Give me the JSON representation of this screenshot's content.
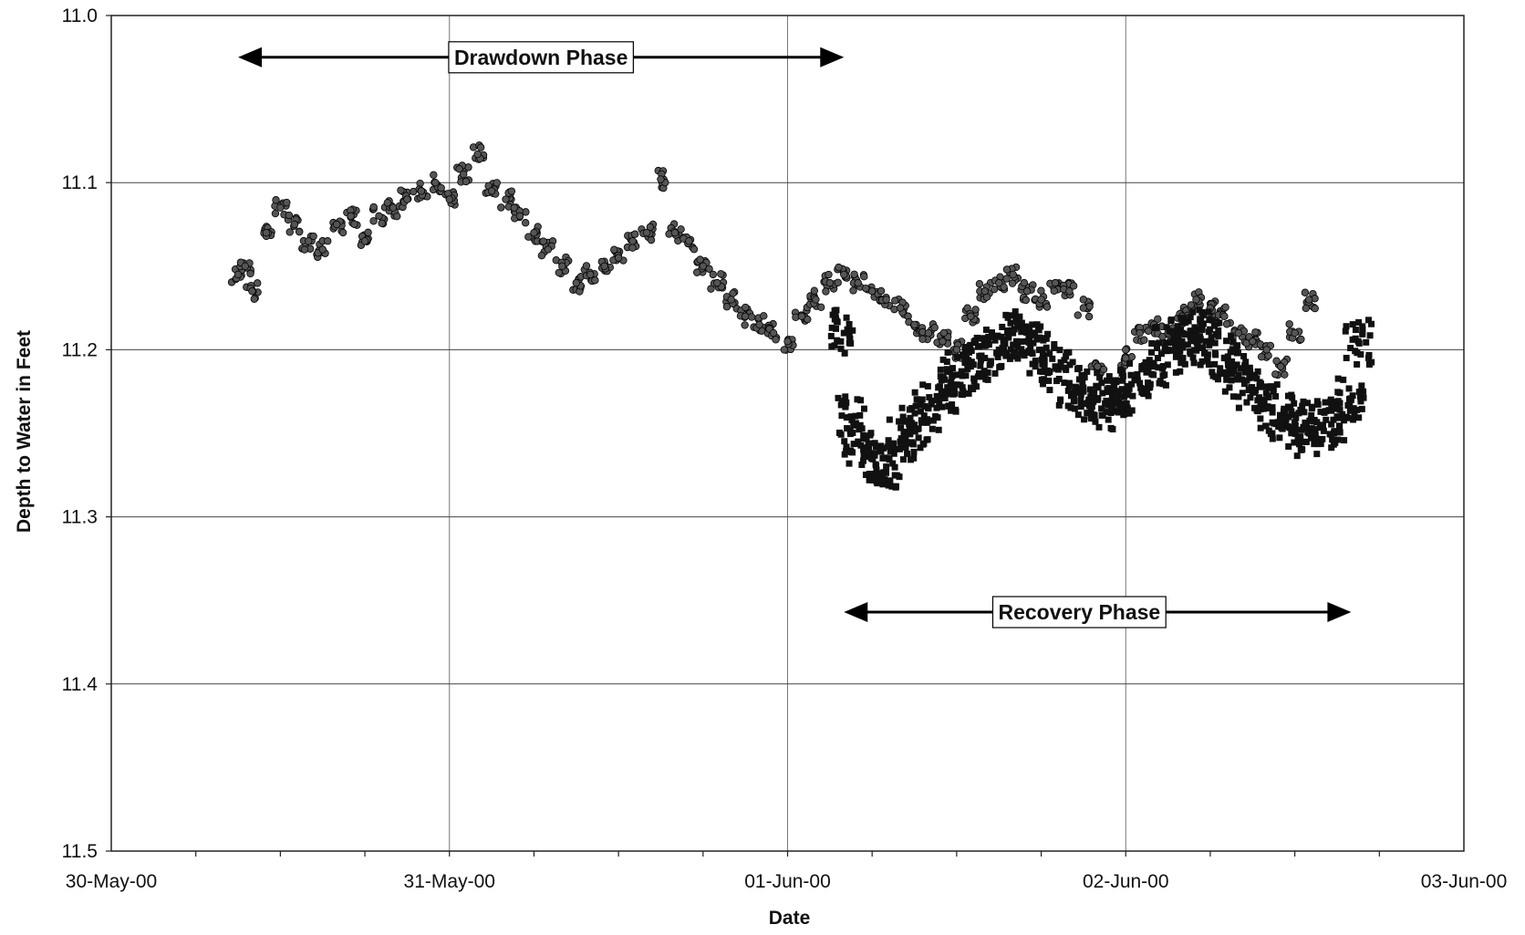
{
  "chart_data": {
    "type": "scatter",
    "title": "",
    "xlabel": "Date",
    "ylabel": "Depth to Water in Feet",
    "xlim": [
      "2000-05-30",
      "2000-06-03"
    ],
    "ylim": [
      11.0,
      11.5
    ],
    "y_inverted": true,
    "grid": true,
    "x_ticks": [
      "30-May-00",
      "31-May-00",
      "01-Jun-00",
      "02-Jun-00",
      "03-Jun-00"
    ],
    "y_ticks": [
      "11.0",
      "11.1",
      "11.2",
      "11.3",
      "11.4",
      "11.5"
    ],
    "annotations": [
      {
        "text": "Drawdown Phase",
        "x_start": "2000-05-30 09:00",
        "x_end": "2000-06-01 04:00",
        "y": 11.025
      },
      {
        "text": "Recovery Phase",
        "x_start": "2000-06-01 04:00",
        "x_end": "2000-06-02 16:00",
        "y": 11.357
      }
    ],
    "series": [
      {
        "marker": "circle",
        "color": "#555555",
        "points": [
          [
            "2000-05-30 09:00",
            11.155
          ],
          [
            "2000-05-30 09:30",
            11.15
          ],
          [
            "2000-05-30 10:00",
            11.165
          ],
          [
            "2000-05-30 11:00",
            11.13
          ],
          [
            "2000-05-30 12:00",
            11.115
          ],
          [
            "2000-05-30 13:00",
            11.125
          ],
          [
            "2000-05-30 14:00",
            11.135
          ],
          [
            "2000-05-30 15:00",
            11.14
          ],
          [
            "2000-05-30 16:00",
            11.125
          ],
          [
            "2000-05-30 17:00",
            11.12
          ],
          [
            "2000-05-30 18:00",
            11.135
          ],
          [
            "2000-05-30 19:00",
            11.12
          ],
          [
            "2000-05-30 20:00",
            11.115
          ],
          [
            "2000-05-30 21:00",
            11.11
          ],
          [
            "2000-05-30 22:00",
            11.105
          ],
          [
            "2000-05-30 23:00",
            11.1
          ],
          [
            "2000-05-31 00:00",
            11.11
          ],
          [
            "2000-05-31 01:00",
            11.095
          ],
          [
            "2000-05-31 02:00",
            11.083
          ],
          [
            "2000-05-31 03:00",
            11.105
          ],
          [
            "2000-05-31 04:00",
            11.11
          ],
          [
            "2000-05-31 05:00",
            11.12
          ],
          [
            "2000-05-31 06:00",
            11.13
          ],
          [
            "2000-05-31 07:00",
            11.14
          ],
          [
            "2000-05-31 08:00",
            11.15
          ],
          [
            "2000-05-31 09:00",
            11.16
          ],
          [
            "2000-05-31 10:00",
            11.155
          ],
          [
            "2000-05-31 11:00",
            11.15
          ],
          [
            "2000-05-31 12:00",
            11.145
          ],
          [
            "2000-05-31 13:00",
            11.135
          ],
          [
            "2000-05-31 14:00",
            11.13
          ],
          [
            "2000-05-31 15:00",
            11.098
          ],
          [
            "2000-05-31 16:00",
            11.13
          ],
          [
            "2000-05-31 17:00",
            11.135
          ],
          [
            "2000-05-31 18:00",
            11.15
          ],
          [
            "2000-05-31 19:00",
            11.16
          ],
          [
            "2000-05-31 20:00",
            11.17
          ],
          [
            "2000-05-31 21:00",
            11.18
          ],
          [
            "2000-05-31 22:00",
            11.185
          ],
          [
            "2000-05-31 23:00",
            11.19
          ],
          [
            "2000-06-01 00:00",
            11.195
          ],
          [
            "2000-06-01 01:00",
            11.18
          ],
          [
            "2000-06-01 02:00",
            11.17
          ],
          [
            "2000-06-01 03:00",
            11.16
          ],
          [
            "2000-06-01 04:00",
            11.155
          ],
          [
            "2000-06-01 05:00",
            11.16
          ],
          [
            "2000-06-01 06:00",
            11.165
          ],
          [
            "2000-06-01 07:00",
            11.17
          ],
          [
            "2000-06-01 08:00",
            11.175
          ],
          [
            "2000-06-01 09:00",
            11.185
          ],
          [
            "2000-06-01 10:00",
            11.19
          ],
          [
            "2000-06-01 11:00",
            11.195
          ],
          [
            "2000-06-01 12:00",
            11.2
          ],
          [
            "2000-06-01 13:00",
            11.18
          ],
          [
            "2000-06-01 14:00",
            11.165
          ],
          [
            "2000-06-01 15:00",
            11.16
          ],
          [
            "2000-06-01 16:00",
            11.155
          ],
          [
            "2000-06-01 17:00",
            11.165
          ],
          [
            "2000-06-01 18:00",
            11.17
          ],
          [
            "2000-06-01 19:00",
            11.16
          ],
          [
            "2000-06-01 20:00",
            11.165
          ],
          [
            "2000-06-01 21:00",
            11.175
          ],
          [
            "2000-06-01 22:00",
            11.21
          ],
          [
            "2000-06-01 23:00",
            11.233
          ],
          [
            "2000-06-02 00:00",
            11.205
          ],
          [
            "2000-06-02 01:00",
            11.19
          ],
          [
            "2000-06-02 02:00",
            11.185
          ],
          [
            "2000-06-02 03:00",
            11.19
          ],
          [
            "2000-06-02 04:00",
            11.18
          ],
          [
            "2000-06-02 05:00",
            11.17
          ],
          [
            "2000-06-02 06:00",
            11.175
          ],
          [
            "2000-06-02 07:00",
            11.18
          ],
          [
            "2000-06-02 08:00",
            11.19
          ],
          [
            "2000-06-02 09:00",
            11.195
          ],
          [
            "2000-06-02 10:00",
            11.2
          ],
          [
            "2000-06-02 11:00",
            11.21
          ],
          [
            "2000-06-02 12:00",
            11.19
          ],
          [
            "2000-06-02 13:00",
            11.17
          ]
        ]
      },
      {
        "marker": "square",
        "color": "#111111",
        "points": [
          [
            "2000-06-01 04:00",
            11.19
          ],
          [
            "2000-06-01 04:30",
            11.24
          ],
          [
            "2000-06-01 05:00",
            11.255
          ],
          [
            "2000-06-01 06:00",
            11.265
          ],
          [
            "2000-06-01 07:00",
            11.27
          ],
          [
            "2000-06-01 08:00",
            11.255
          ],
          [
            "2000-06-01 09:00",
            11.245
          ],
          [
            "2000-06-01 10:00",
            11.235
          ],
          [
            "2000-06-01 11:00",
            11.225
          ],
          [
            "2000-06-01 12:00",
            11.215
          ],
          [
            "2000-06-01 13:00",
            11.21
          ],
          [
            "2000-06-01 14:00",
            11.205
          ],
          [
            "2000-06-01 15:00",
            11.2
          ],
          [
            "2000-06-01 16:00",
            11.19
          ],
          [
            "2000-06-01 17:00",
            11.195
          ],
          [
            "2000-06-01 18:00",
            11.2
          ],
          [
            "2000-06-01 19:00",
            11.21
          ],
          [
            "2000-06-01 20:00",
            11.22
          ],
          [
            "2000-06-01 21:00",
            11.225
          ],
          [
            "2000-06-01 22:00",
            11.23
          ],
          [
            "2000-06-01 23:00",
            11.235
          ],
          [
            "2000-06-02 00:00",
            11.225
          ],
          [
            "2000-06-02 01:00",
            11.22
          ],
          [
            "2000-06-02 02:00",
            11.21
          ],
          [
            "2000-06-02 03:00",
            11.2
          ],
          [
            "2000-06-02 04:00",
            11.195
          ],
          [
            "2000-06-02 05:00",
            11.19
          ],
          [
            "2000-06-02 06:00",
            11.195
          ],
          [
            "2000-06-02 07:00",
            11.205
          ],
          [
            "2000-06-02 08:00",
            11.215
          ],
          [
            "2000-06-02 09:00",
            11.225
          ],
          [
            "2000-06-02 10:00",
            11.235
          ],
          [
            "2000-06-02 11:00",
            11.24
          ],
          [
            "2000-06-02 12:00",
            11.245
          ],
          [
            "2000-06-02 13:00",
            11.25
          ],
          [
            "2000-06-02 14:00",
            11.245
          ],
          [
            "2000-06-02 15:00",
            11.24
          ],
          [
            "2000-06-02 16:00",
            11.23
          ],
          [
            "2000-06-02 16:30",
            11.195
          ]
        ]
      }
    ]
  }
}
